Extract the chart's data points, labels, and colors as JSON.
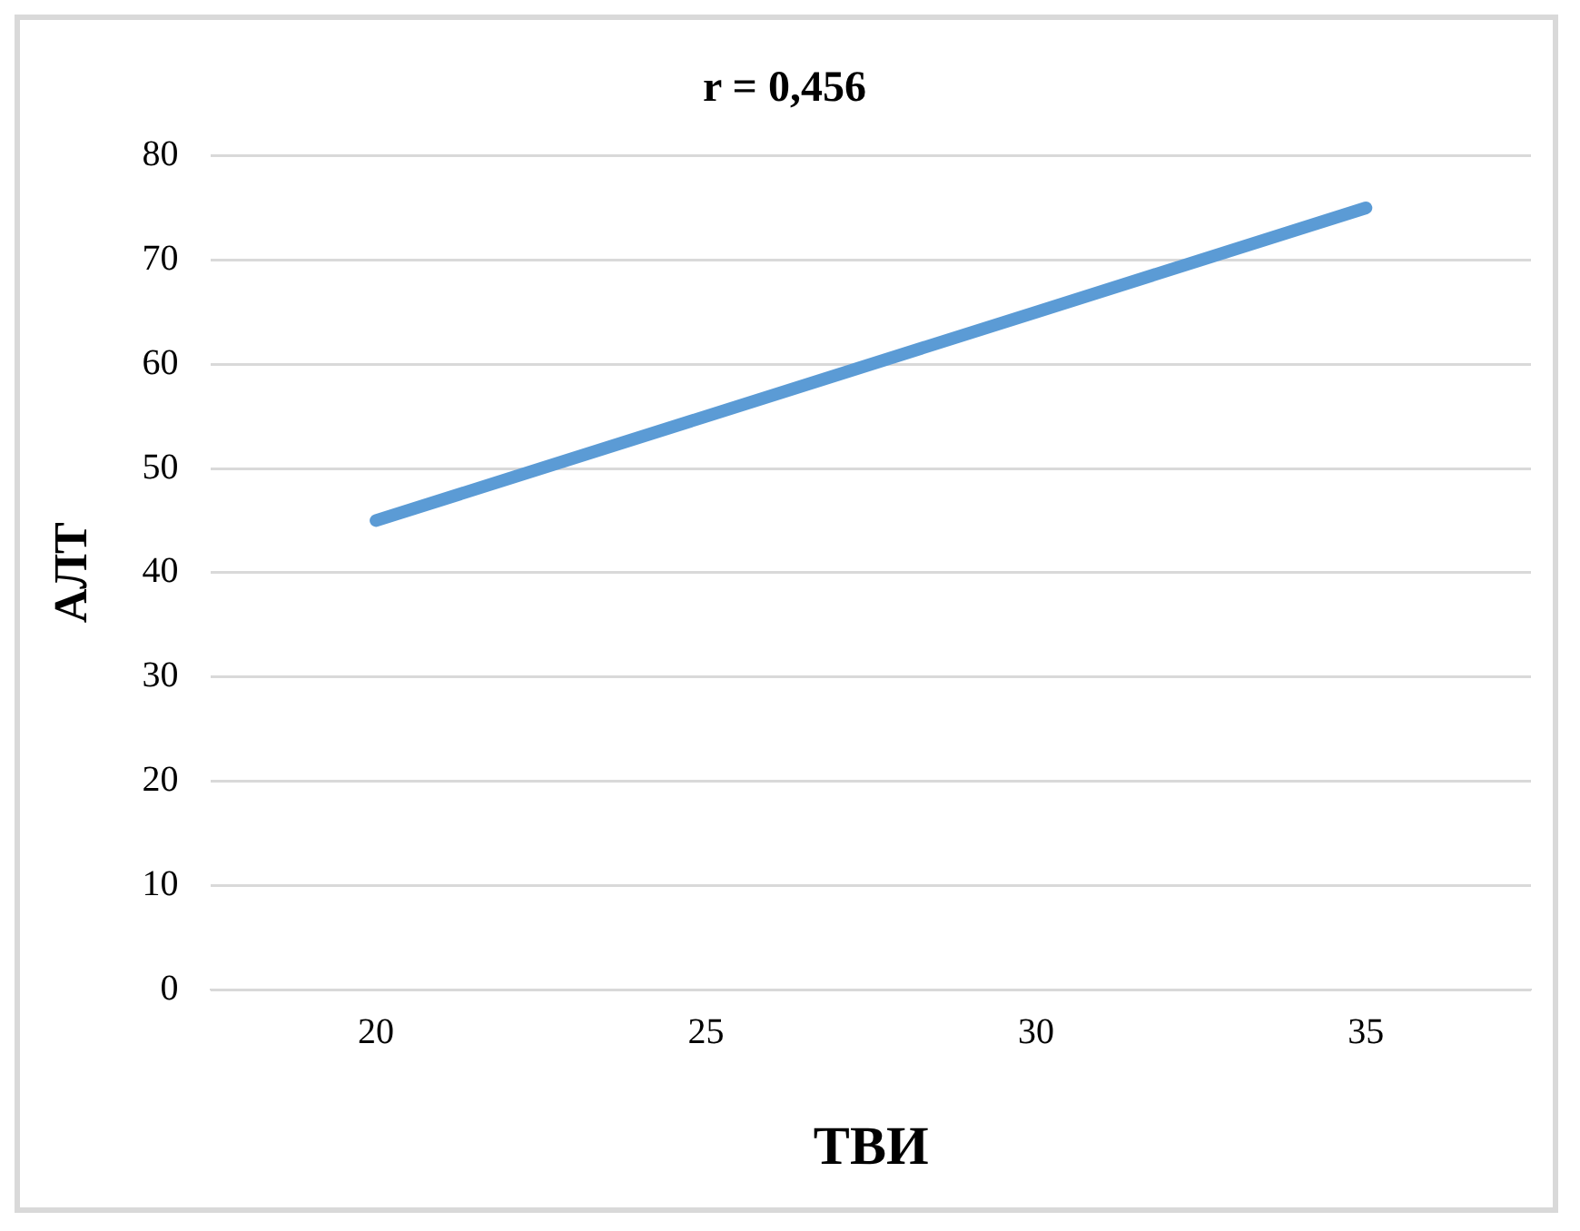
{
  "chart_data": {
    "type": "line",
    "title": "r = 0,456",
    "xlabel": "ТВИ",
    "ylabel": "АЛТ",
    "categories": [
      "20",
      "25",
      "30",
      "35"
    ],
    "series": [
      {
        "color": "#5b9bd5",
        "values": [
          45,
          55,
          65,
          75
        ]
      }
    ],
    "ylim": [
      0,
      80
    ],
    "yticks": [
      0,
      10,
      20,
      30,
      40,
      50,
      60,
      70,
      80
    ],
    "grid": "y",
    "legend": false,
    "marker": "none",
    "line_style": "solid"
  }
}
